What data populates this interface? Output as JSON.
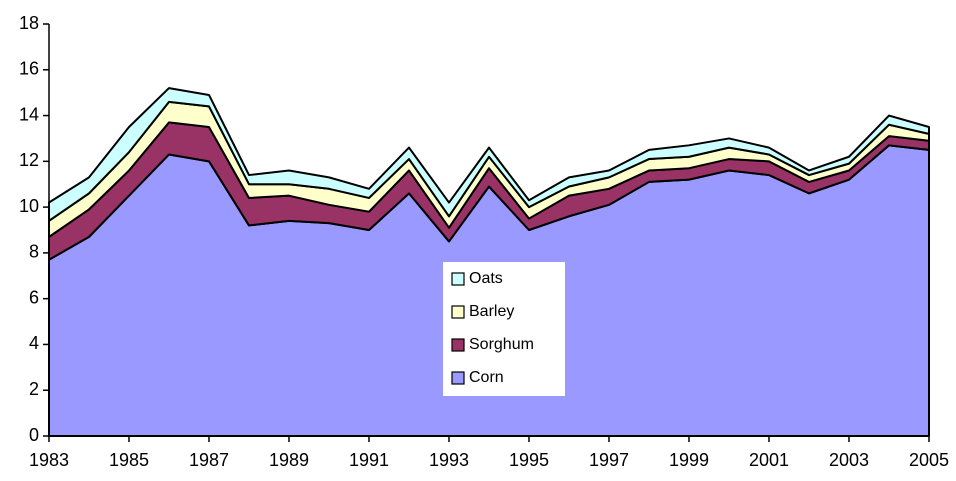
{
  "chart_data": {
    "type": "stacked-area",
    "x": [
      1983,
      1984,
      1985,
      1986,
      1987,
      1988,
      1989,
      1990,
      1991,
      1992,
      1993,
      1994,
      1995,
      1996,
      1997,
      1998,
      1999,
      2000,
      2001,
      2002,
      2003,
      2004,
      2005
    ],
    "series": [
      {
        "name": "Corn",
        "color": "#9999ff",
        "values": [
          7.7,
          8.7,
          10.5,
          12.3,
          12.0,
          9.2,
          9.4,
          9.3,
          9.0,
          10.6,
          8.5,
          10.9,
          9.0,
          9.6,
          10.1,
          11.1,
          11.2,
          11.6,
          11.4,
          10.6,
          11.2,
          12.7,
          12.5
        ]
      },
      {
        "name": "Sorghum",
        "color": "#993366",
        "values": [
          1.0,
          1.2,
          1.1,
          1.4,
          1.5,
          1.2,
          1.1,
          0.8,
          0.8,
          1.0,
          0.6,
          0.8,
          0.5,
          0.9,
          0.7,
          0.5,
          0.5,
          0.5,
          0.6,
          0.5,
          0.4,
          0.4,
          0.4
        ]
      },
      {
        "name": "Barley",
        "color": "#ffffcc",
        "values": [
          0.7,
          0.7,
          0.8,
          0.9,
          0.9,
          0.6,
          0.5,
          0.7,
          0.6,
          0.5,
          0.5,
          0.5,
          0.5,
          0.4,
          0.5,
          0.5,
          0.5,
          0.5,
          0.3,
          0.3,
          0.3,
          0.5,
          0.3
        ]
      },
      {
        "name": "Oats",
        "color": "#ccffff",
        "values": [
          0.8,
          0.7,
          1.1,
          0.6,
          0.5,
          0.4,
          0.6,
          0.5,
          0.4,
          0.5,
          0.6,
          0.4,
          0.3,
          0.4,
          0.3,
          0.4,
          0.5,
          0.4,
          0.3,
          0.2,
          0.3,
          0.4,
          0.3
        ]
      }
    ],
    "xlim": [
      1983,
      2005
    ],
    "xticks": [
      1983,
      1985,
      1987,
      1989,
      1991,
      1993,
      1995,
      1997,
      1999,
      2001,
      2003,
      2005
    ],
    "ylim": [
      0,
      18
    ],
    "yticks": [
      0,
      2,
      4,
      6,
      8,
      10,
      12,
      14,
      16,
      18
    ],
    "legend": "center"
  }
}
